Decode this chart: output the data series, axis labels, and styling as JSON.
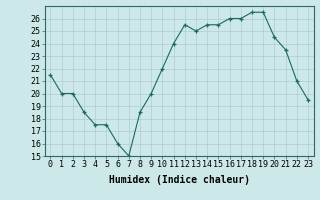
{
  "x": [
    0,
    1,
    2,
    3,
    4,
    5,
    6,
    7,
    8,
    9,
    10,
    11,
    12,
    13,
    14,
    15,
    16,
    17,
    18,
    19,
    20,
    21,
    22,
    23
  ],
  "y": [
    21.5,
    20.0,
    20.0,
    18.5,
    17.5,
    17.5,
    16.0,
    15.0,
    18.5,
    20.0,
    22.0,
    24.0,
    25.5,
    25.0,
    25.5,
    25.5,
    26.0,
    26.0,
    26.5,
    26.5,
    24.5,
    23.5,
    21.0,
    19.5
  ],
  "xlabel": "Humidex (Indice chaleur)",
  "line_color": "#1a6b5a",
  "marker": "+",
  "bg_color": "#cce8e8",
  "grid_color": "#b0cccc",
  "ylim": [
    15,
    27
  ],
  "xlim": [
    -0.5,
    23.5
  ],
  "yticks": [
    15,
    16,
    17,
    18,
    19,
    20,
    21,
    22,
    23,
    24,
    25,
    26
  ],
  "xticks": [
    0,
    1,
    2,
    3,
    4,
    5,
    6,
    7,
    8,
    9,
    10,
    11,
    12,
    13,
    14,
    15,
    16,
    17,
    18,
    19,
    20,
    21,
    22,
    23
  ],
  "xtick_labels": [
    "0",
    "1",
    "2",
    "3",
    "4",
    "5",
    "6",
    "7",
    "8",
    "9",
    "10",
    "11",
    "12",
    "13",
    "14",
    "15",
    "16",
    "17",
    "18",
    "19",
    "20",
    "21",
    "22",
    "23"
  ],
  "label_fontsize": 7,
  "tick_fontsize": 6
}
